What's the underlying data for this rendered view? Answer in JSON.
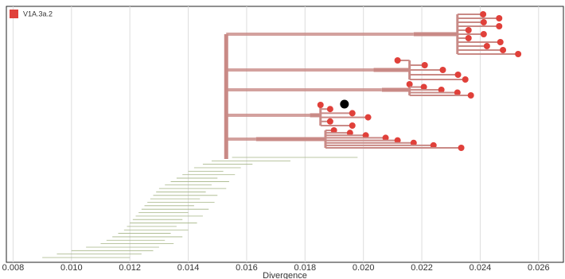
{
  "chart_data": {
    "type": "tree",
    "xlabel": "Divergence",
    "legend": {
      "name": "V1A.3a.2",
      "color": "#e0403a"
    },
    "xlim": [
      0.00777,
      0.02685
    ],
    "xticks": [
      {
        "value": 0.008,
        "label": "0.008"
      },
      {
        "value": 0.01,
        "label": "0.010"
      },
      {
        "value": 0.012,
        "label": "0.012"
      },
      {
        "value": 0.014,
        "label": "0.014"
      },
      {
        "value": 0.016,
        "label": "0.016"
      },
      {
        "value": 0.018,
        "label": "0.018"
      },
      {
        "value": 0.02,
        "label": "0.020"
      },
      {
        "value": 0.022,
        "label": "0.022"
      },
      {
        "value": 0.024,
        "label": "0.024"
      },
      {
        "value": 0.026,
        "label": "0.026"
      }
    ],
    "grid": true,
    "root_x": 0.0153,
    "highlight_x": 0.01935,
    "branch_color": "#c98a86",
    "background_color": "#a4b484",
    "clades": [
      {
        "x0": 0.02172,
        "x1": 0.02322,
        "tips": [
          0.0241,
          0.02465,
          0.02412,
          0.02465,
          0.0236,
          0.02412,
          0.0236,
          0.02469,
          0.02423,
          0.02478,
          0.0253
        ]
      },
      {
        "x0": 0.02035,
        "x1": 0.02158,
        "tips": [
          0.02117,
          0.0221,
          0.02272,
          0.02324,
          0.02349
        ]
      },
      {
        "x0": 0.02063,
        "x1": 0.02158,
        "tips": [
          0.02158,
          0.02207,
          0.02267,
          0.02322,
          0.02368
        ]
      },
      {
        "x0": 0.01817,
        "x1": 0.01853,
        "tips": [
          0.01853,
          0.01886,
          0.01962,
          0.02016,
          0.01886,
          0.01962
        ]
      },
      {
        "x0": 0.01632,
        "x1": 0.0187,
        "tips": [
          0.01899,
          0.01954,
          0.02008,
          0.02076,
          0.02117,
          0.02172,
          0.0224,
          0.02335
        ]
      }
    ],
    "background_branches": {
      "x0": [
        0.0155,
        0.0148,
        0.0145,
        0.0142,
        0.014,
        0.0138,
        0.0136,
        0.0134,
        0.0132,
        0.013,
        0.0129,
        0.0128,
        0.0127,
        0.0126,
        0.0125,
        0.0124,
        0.0123,
        0.0122,
        0.0121,
        0.012,
        0.0119,
        0.0118,
        0.0116,
        0.0114,
        0.0112,
        0.011,
        0.0105,
        0.01,
        0.0095,
        0.009
      ],
      "x1": [
        0.0198,
        0.0175,
        0.0162,
        0.0158,
        0.0152,
        0.0156,
        0.015,
        0.0154,
        0.0148,
        0.0153,
        0.0146,
        0.015,
        0.0144,
        0.0149,
        0.0142,
        0.0147,
        0.014,
        0.0145,
        0.0138,
        0.0143,
        0.0136,
        0.014,
        0.0134,
        0.0138,
        0.0132,
        0.0135,
        0.013,
        0.0128,
        0.0124,
        0.012
      ]
    }
  }
}
